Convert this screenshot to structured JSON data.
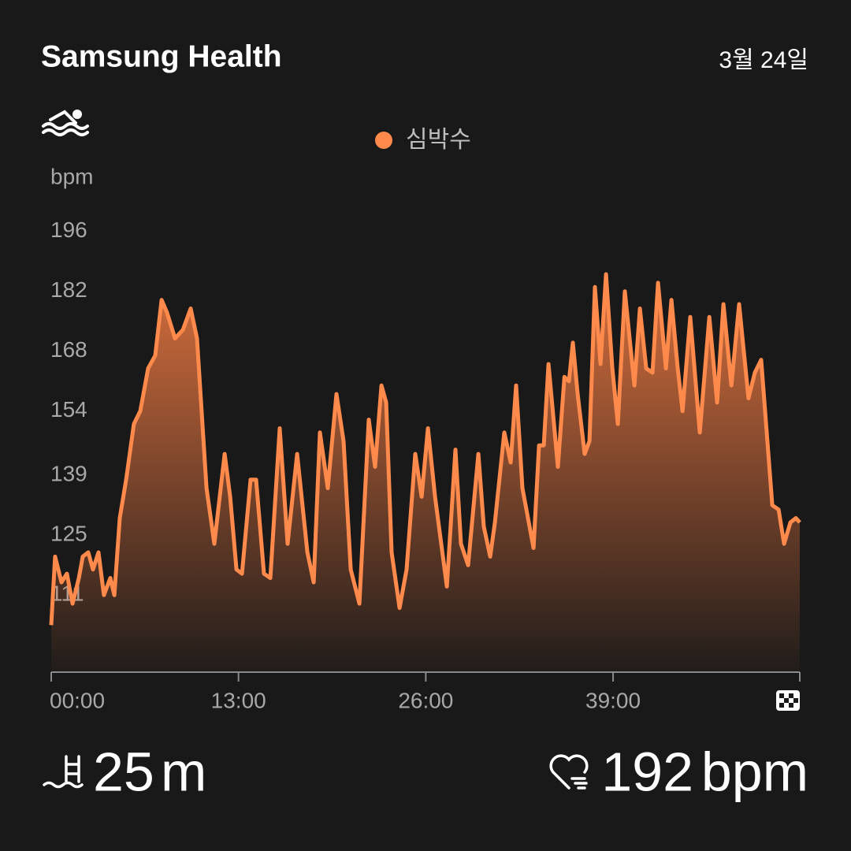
{
  "chart_data": {
    "type": "line",
    "title": "Samsung Health",
    "subtitle": "3월 24일",
    "y_label": "bpm",
    "xlim": [
      0,
      51.96
    ],
    "xticks": [
      {
        "value": 0,
        "label": "00:00"
      },
      {
        "value": 13,
        "label": "13:00"
      },
      {
        "value": 26,
        "label": "26:00"
      },
      {
        "value": 39,
        "label": "39:00"
      }
    ],
    "ylim": [
      93,
      200
    ],
    "yticks": [
      196,
      182,
      168,
      154,
      139,
      125,
      111
    ],
    "grid": false,
    "legend": "top",
    "x": [
      0,
      0.27,
      0.71,
      1.09,
      1.48,
      1.92,
      2.19,
      2.57,
      2.9,
      3.28,
      3.66,
      4.1,
      4.38,
      4.76,
      5.2,
      5.74,
      6.18,
      6.73,
      7.22,
      7.66,
      8.04,
      8.59,
      9.14,
      9.68,
      10.12,
      10.78,
      11.32,
      12.04,
      12.42,
      12.86,
      13.24,
      13.84,
      14.22,
      14.77,
      15.21,
      15.86,
      16.41,
      17.07,
      17.78,
      18.22,
      18.65,
      19.2,
      19.8,
      20.29,
      20.79,
      21.39,
      22.04,
      22.48,
      22.92,
      23.25,
      23.63,
      24.18,
      24.67,
      25.27,
      25.71,
      26.15,
      26.64,
      27.46,
      28.06,
      28.44,
      28.94,
      29.65,
      30.03,
      30.47,
      30.8,
      31.45,
      31.89,
      32.27,
      32.71,
      33.48,
      33.86,
      34.19,
      34.52,
      35.17,
      35.62,
      35.94,
      36.21,
      36.54,
      37.03,
      37.36,
      37.74,
      38.13,
      38.51,
      38.95,
      39.33,
      39.82,
      40.48,
      40.86,
      41.3,
      41.74,
      42.12,
      42.67,
      43.05,
      43.49,
      43.82,
      44.36,
      45.02,
      45.68,
      46.22,
      46.66,
      47.21,
      47.75,
      48.4,
      48.84,
      49.28,
      50.05,
      50.49,
      50.87,
      51.31,
      51.69,
      51.96
    ],
    "series": [
      {
        "name": "심박수",
        "color": "#ff8a4c",
        "values": [
          104,
          120,
          114,
          116,
          109,
          115,
          120,
          121,
          117,
          121,
          111,
          115,
          111,
          129,
          138,
          151,
          154,
          164,
          167,
          180,
          177,
          171,
          173,
          178,
          171,
          136,
          123,
          144,
          134,
          117,
          116,
          138,
          138,
          116,
          115,
          150,
          123,
          144,
          121,
          114,
          149,
          136,
          158,
          147,
          117,
          109,
          152,
          141,
          160,
          156,
          121,
          108,
          117,
          144,
          134,
          150,
          134,
          113,
          145,
          123,
          118,
          144,
          127,
          120,
          128,
          149,
          142,
          160,
          136,
          122,
          146,
          146,
          165,
          141,
          162,
          161,
          170,
          158,
          144,
          147,
          183,
          165,
          186,
          164,
          151,
          182,
          160,
          178,
          164,
          163,
          184,
          164,
          180,
          164,
          154,
          176,
          149,
          176,
          156,
          179,
          160,
          179,
          157,
          163,
          166,
          132,
          131,
          123,
          128,
          129,
          128
        ]
      }
    ]
  },
  "summary": {
    "distance": 25,
    "distance_unit": "m",
    "max_heart_rate": 192,
    "max_heart_rate_unit": "bpm"
  }
}
